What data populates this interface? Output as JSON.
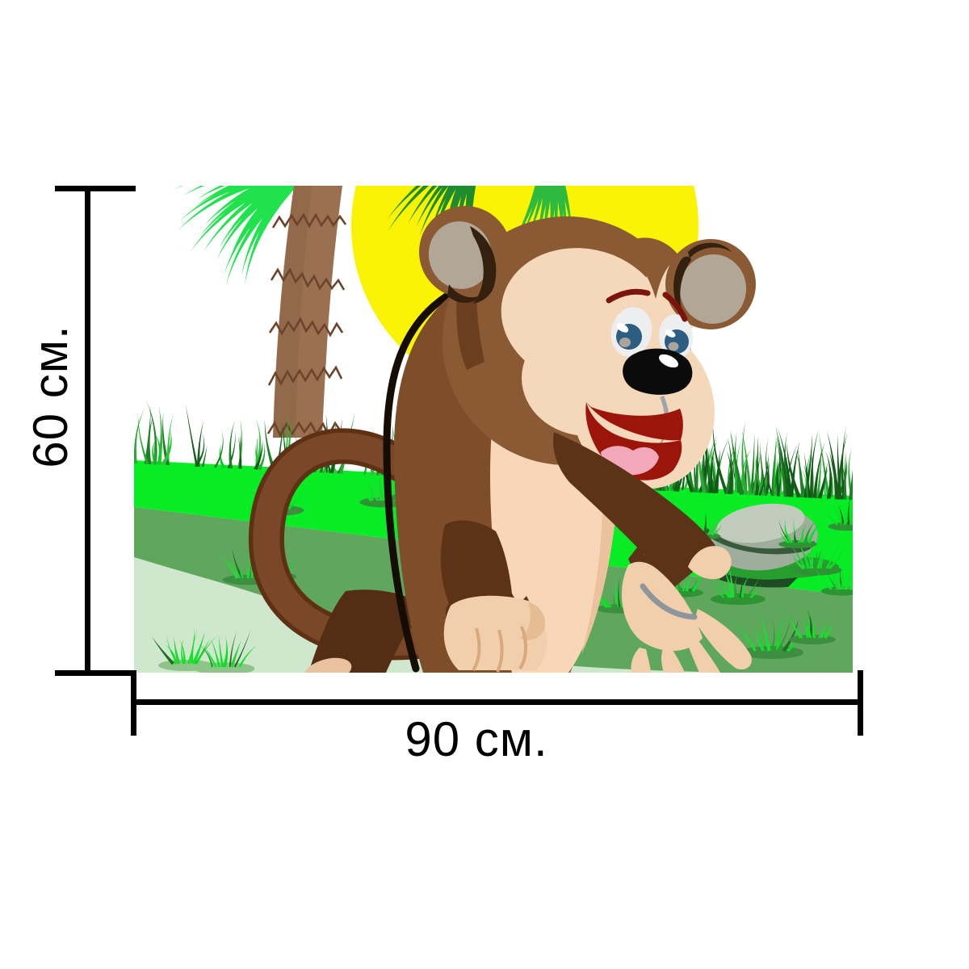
{
  "dimensions": {
    "height_label": "60 см.",
    "width_label": "90 см."
  },
  "illustration": {
    "subject": "cartoon monkey on grass with palm tree, sun and stone",
    "colors": {
      "dimension_line": "#000000",
      "sun_yellow": "#FAF303",
      "palm_leaf_green": "#20E24C",
      "palm_leaf_dark": "#1E8C2E",
      "palm_leaf_mid": "#2DBA3F",
      "palm_trunk_brown": "#9A7050",
      "grass_bright": "#07EC24",
      "ground_green": "#5FA75C",
      "path_pale_green": "#CFE7CC",
      "monkey_brown": "#8A5A35",
      "monkey_body_brown": "#7E4E2A",
      "monkey_dark_brown": "#5C3317",
      "monkey_face_tan": "#F5D7B9",
      "monkey_hand_tan": "#F2CFAC",
      "mouth_red": "#9C150B",
      "tongue_pink": "#F2A8B8",
      "stone_gray": "#9FAD9C"
    }
  }
}
